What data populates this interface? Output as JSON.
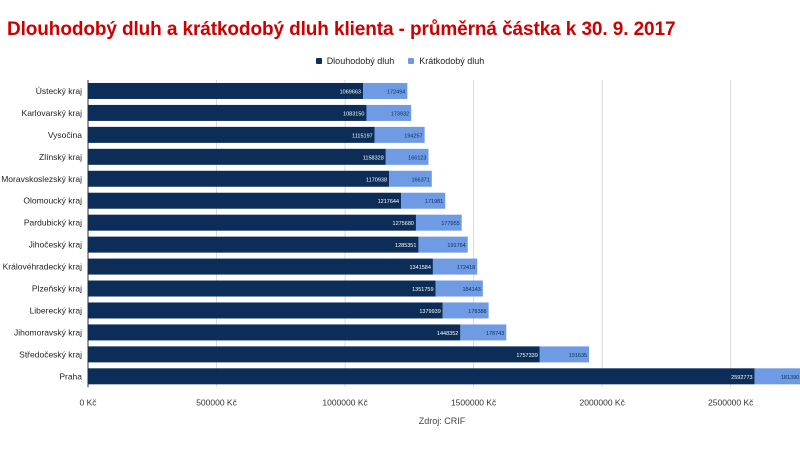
{
  "title": "Dlouhodobý dluh a krátkodobý dluh klienta - průměrná částka k 30. 9. 2017",
  "source": "Zdroj: CRIF",
  "colors": {
    "long": "#0b2d58",
    "short": "#6e9be3",
    "title": "#cc0000",
    "grid": "#d9d9d9"
  },
  "chart_data": {
    "type": "bar",
    "orientation": "horizontal",
    "stacked": true,
    "categories": [
      "Ústecký kraj",
      "Karlovarský kraj",
      "Vysočina",
      "Zlínský kraj",
      "Moravskoslezský kraj",
      "Olomoucký kraj",
      "Pardubický kraj",
      "Jihočeský kraj",
      "Královéhradecký kraj",
      "Plzeňský kraj",
      "Liberecký kraj",
      "Jihomoravský kraj",
      "Středočeský kraj",
      "Praha"
    ],
    "series": [
      {
        "name": "Dlouhodobý dluh",
        "values": [
          1069663,
          1083150,
          1115197,
          1158328,
          1170938,
          1217644,
          1275680,
          1285351,
          1341584,
          1351759,
          1379939,
          1448352,
          1757339,
          2592773
        ]
      },
      {
        "name": "Krátkodobý dluh",
        "values": [
          172494,
          173932,
          194257,
          166123,
          166371,
          171981,
          177955,
          191764,
          172418,
          184143,
          178388,
          178743,
          191635,
          181390
        ]
      }
    ],
    "x_ticks": [
      "0 Kč",
      "500000 Kč",
      "1000000 Kč",
      "1500000 Kč",
      "2000000 Kč",
      "2500000 Kč"
    ],
    "xlim": [
      0,
      2750000
    ],
    "grid": true,
    "legend_position": "top"
  }
}
